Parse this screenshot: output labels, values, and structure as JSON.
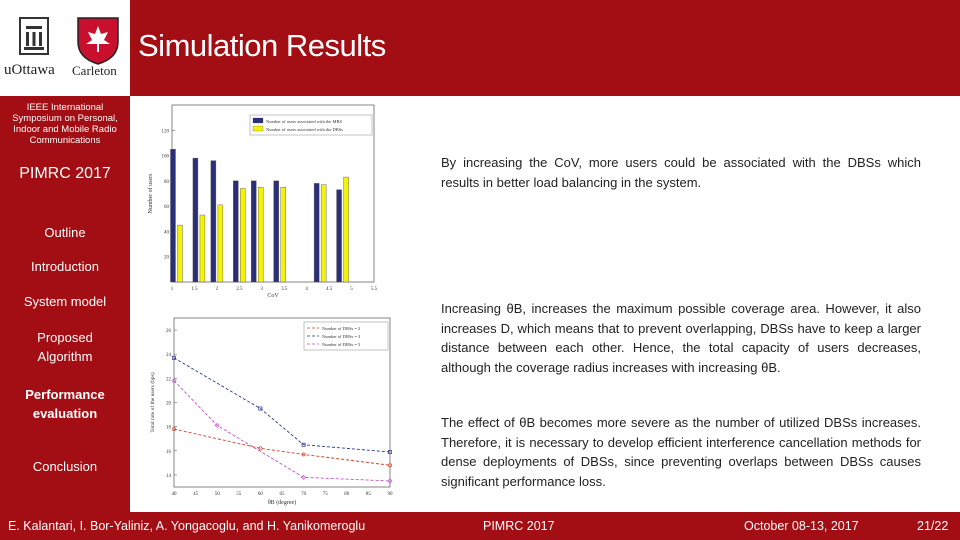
{
  "slide": {
    "title": "Simulation Results",
    "colors": {
      "brand": "#a20e13",
      "text_on_brand": "#ffffff"
    }
  },
  "logos": {
    "left_text": "uOttawa",
    "right_text": "Carleton"
  },
  "sidebar": {
    "conference_long": "IEEE International Symposium on Personal, Indoor and Mobile Radio Communications",
    "conference_short": "PIMRC 2017",
    "items": [
      {
        "label": "Outline",
        "active": false
      },
      {
        "label": "Introduction",
        "active": false
      },
      {
        "label": "System model",
        "active": false
      },
      {
        "label": "Proposed Algorithm",
        "active": false
      },
      {
        "label": "Performance evaluation",
        "active": true
      },
      {
        "label": "Conclusion",
        "active": false
      }
    ]
  },
  "text": {
    "para1": "By increasing the CoV, more users could be associated with the DBSs which results in better load balancing in the system.",
    "para2": "Increasing θB, increases the maximum possible coverage area. However, it also increases D, which means that to prevent overlapping, DBSs have to keep a larger distance between each other. Hence, the total capacity of users decreases, although the coverage radius increases with increasing θB.",
    "para3": "The effect of θB becomes more severe as the number of utilized DBSs increases. Therefore, it is necessary to develop efficient interference cancellation methods for dense deployments of DBSs, since preventing overlaps between DBSs causes significant performance loss."
  },
  "footer": {
    "authors": "E. Kalantari, I. Bor-Yaliniz, A. Yongacoglu, and H. Yanikomeroglu",
    "conference": "PIMRC 2017",
    "date": "October 08-13, 2017",
    "page": "21/22"
  },
  "chart_data": [
    {
      "type": "bar",
      "xlabel": "CoV",
      "ylabel": "Number of users",
      "categories": [
        "1",
        "1.5",
        "2",
        "2.5",
        "3",
        "3.5",
        "4",
        "4.5",
        "5",
        "5.5"
      ],
      "x_ticks": [
        "1",
        "1.5",
        "2",
        "2.5",
        "3",
        "3.5",
        "4",
        "4.5",
        "5",
        "5.5"
      ],
      "y_ticks": [
        "20",
        "40",
        "60",
        "80",
        "100",
        "120"
      ],
      "ylim": [
        0,
        140
      ],
      "legend_position": "top-right",
      "series": [
        {
          "name": "Number of users associated with the MBS",
          "color": "#2b2f7a",
          "values": [
            105,
            98,
            96,
            80,
            80,
            80,
            null,
            78,
            73,
            null
          ]
        },
        {
          "name": "Number of users associated with the DBSs",
          "color": "#f2f20a",
          "values": [
            45,
            53,
            61,
            74,
            75,
            75,
            null,
            77,
            83,
            null
          ]
        }
      ],
      "x_positions": [
        1.1,
        1.6,
        2.0,
        2.5,
        2.9,
        3.4,
        null,
        4.3,
        4.8,
        null
      ]
    },
    {
      "type": "line",
      "xlabel": "θB (degree)",
      "ylabel": "Total rate of the users (bps)",
      "x": [
        40,
        45,
        50,
        55,
        60,
        65,
        70,
        75,
        80,
        85,
        90
      ],
      "x_ticks": [
        "40",
        "45",
        "50",
        "55",
        "60",
        "65",
        "70",
        "75",
        "80",
        "85",
        "90"
      ],
      "y_ticks": [
        "14",
        "16",
        "18",
        "20",
        "22",
        "24",
        "26"
      ],
      "ylim": [
        13,
        27
      ],
      "legend_position": "top-right",
      "series": [
        {
          "name": "Number of DBSs = 2",
          "color": "#d6402a",
          "marker": "circle",
          "x": [
            40,
            60,
            70,
            90
          ],
          "values": [
            17.8,
            16.2,
            15.7,
            14.8
          ]
        },
        {
          "name": "Number of DBSs = 3",
          "color": "#2b3a8f",
          "marker": "square",
          "x": [
            40,
            60,
            70,
            90
          ],
          "values": [
            23.7,
            19.5,
            16.5,
            15.9
          ]
        },
        {
          "name": "Number of DBSs = 5",
          "color": "#c050c8",
          "marker": "diamond",
          "x": [
            40,
            50,
            70,
            90
          ],
          "values": [
            21.8,
            18.1,
            13.8,
            13.5
          ]
        }
      ]
    }
  ]
}
